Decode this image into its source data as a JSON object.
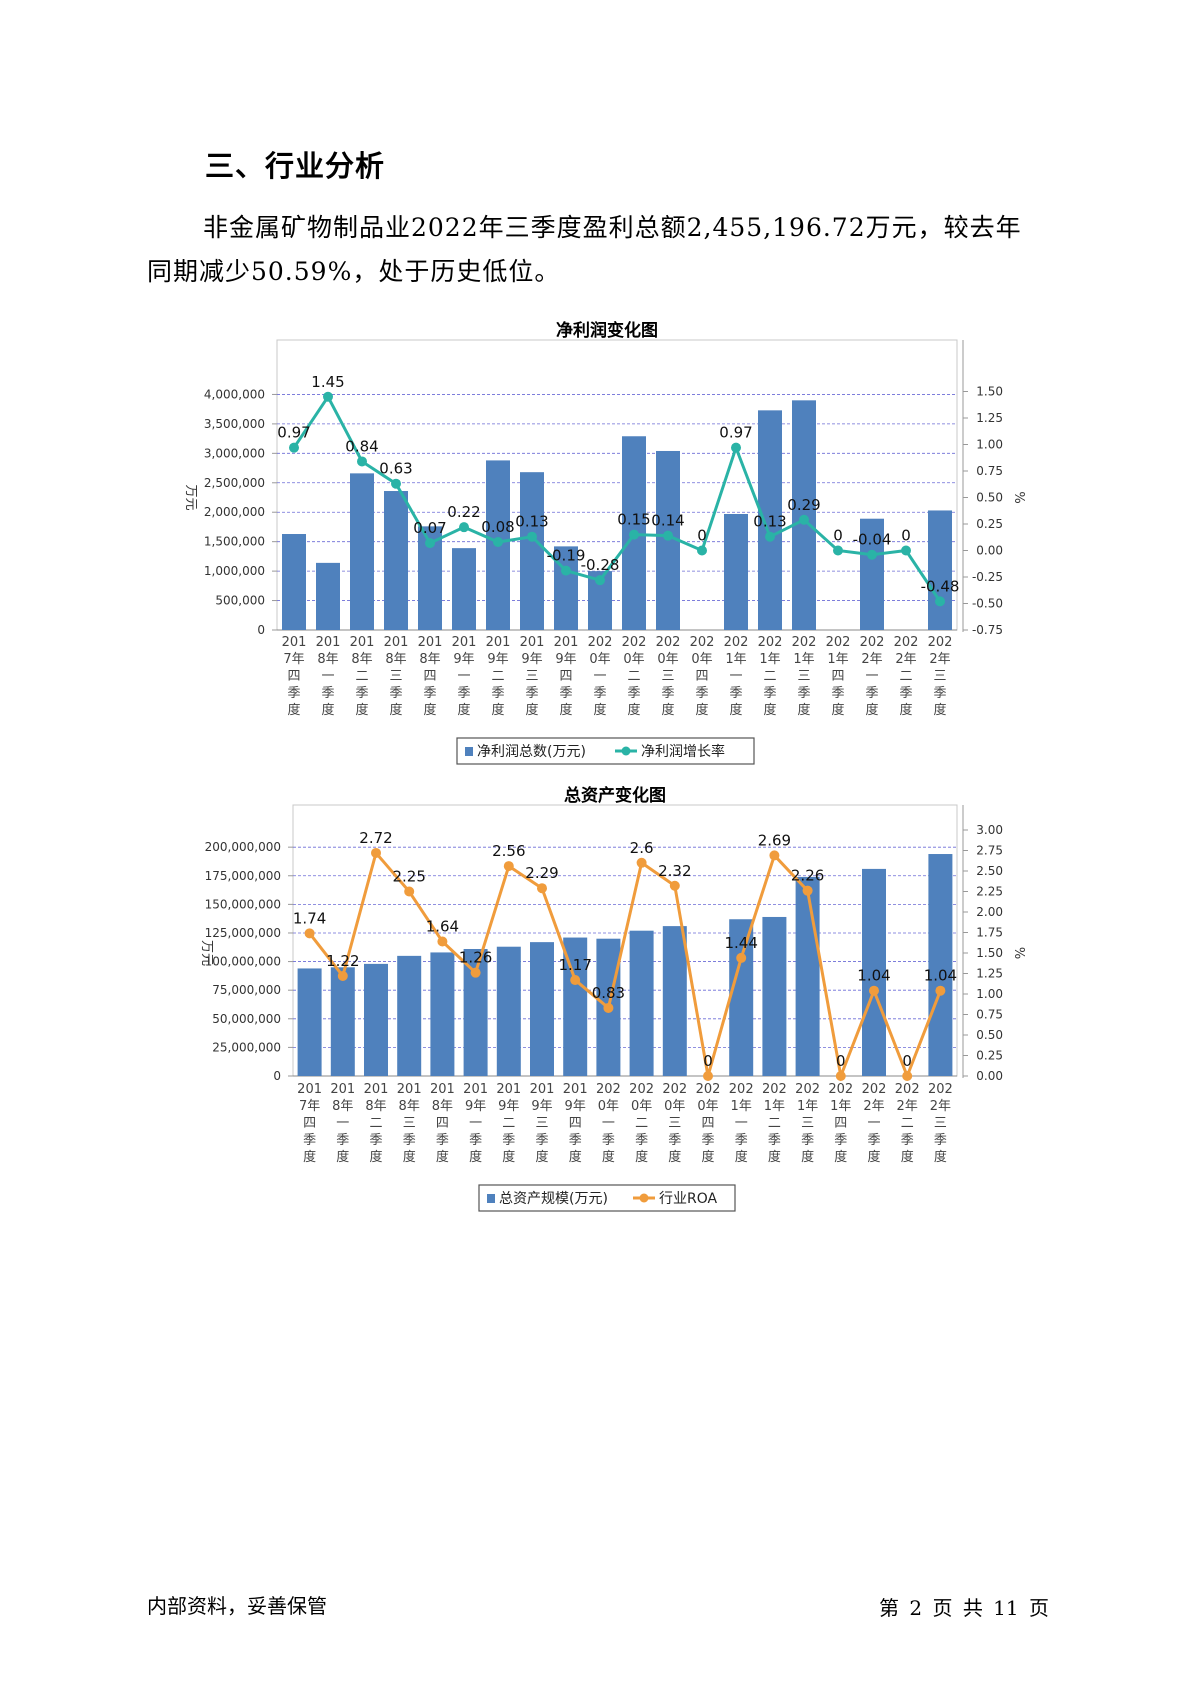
{
  "heading": "三、行业分析",
  "paragraph": "非金属矿物制品业2022年三季度盈利总额2,455,196.72万元，较去年同期减少50.59%，处于历史低位。",
  "footer": {
    "left": "内部资料，妥善保管",
    "right": "第 2 页  共 11 页"
  },
  "colors": {
    "bar": "#4f81bd",
    "line1": "#2ab3a6",
    "line2": "#f09c3c",
    "grid": "#6b6bd6"
  },
  "chart_data": [
    {
      "type": "bar+line",
      "title": "净利润变化图",
      "ylabel": "万元",
      "y2label": "%",
      "categories": [
        "2017年四季度",
        "2018年一季度",
        "2018年二季度",
        "2018年三季度",
        "2018年四季度",
        "2019年一季度",
        "2019年二季度",
        "2019年三季度",
        "2019年四季度",
        "2020年一季度",
        "2020年二季度",
        "2020年三季度",
        "2020年四季度",
        "2021年一季度",
        "2021年二季度",
        "2021年三季度",
        "2021年四季度",
        "2022年一季度",
        "2022年二季度",
        "2022年三季度"
      ],
      "ylim": [
        0,
        4500000
      ],
      "yticks": [
        0,
        500000,
        1000000,
        1500000,
        2000000,
        2500000,
        3000000,
        3500000,
        4000000
      ],
      "ytick_labels": [
        "0",
        "500,000",
        "1,000,000",
        "1,500,000",
        "2,000,000",
        "2,500,000",
        "3,000,000",
        "3,500,000",
        "4,000,000"
      ],
      "y2lim": [
        -0.75,
        1.75
      ],
      "y2ticks": [
        -0.75,
        -0.5,
        -0.25,
        0,
        0.25,
        0.5,
        0.75,
        1.0,
        1.25,
        1.5
      ],
      "y2tick_labels": [
        "-0.75",
        "-0.50",
        "-0.25",
        "0.00",
        "0.25",
        "0.50",
        "0.75",
        "1.00",
        "1.25",
        "1.50"
      ],
      "bar_series": {
        "name": "净利润总数(万元)",
        "values": [
          1630000,
          1140000,
          2660000,
          2360000,
          1760000,
          1390000,
          2880000,
          2680000,
          1420000,
          1000000,
          3290000,
          3040000,
          0,
          1970000,
          3730000,
          3900000,
          0,
          1890000,
          0,
          2030000
        ]
      },
      "line_series": {
        "name": "净利润增长率",
        "values": [
          0.97,
          1.45,
          0.84,
          0.63,
          0.07,
          0.22,
          0.08,
          0.13,
          -0.19,
          -0.28,
          0.15,
          0.14,
          0,
          0.97,
          0.13,
          0.29,
          0,
          -0.04,
          0,
          -0.48
        ],
        "labels": [
          "0.97",
          "1.45",
          "0.84",
          "0.63",
          "0.07",
          "0.22",
          "0.08",
          "0.13",
          "-0.19",
          "-0.28",
          "0.15",
          "0.14",
          "0",
          "0.97",
          "0.13",
          "0.29",
          "0",
          "-0.04",
          "0",
          "-0.48"
        ]
      }
    },
    {
      "type": "bar+line",
      "title": "总资产变化图",
      "ylabel": "万元",
      "y2label": "%",
      "categories": [
        "2017年四季度",
        "2018年一季度",
        "2018年二季度",
        "2018年三季度",
        "2018年四季度",
        "2019年一季度",
        "2019年二季度",
        "2019年三季度",
        "2019年四季度",
        "2020年一季度",
        "2020年二季度",
        "2020年三季度",
        "2020年四季度",
        "2021年一季度",
        "2021年二季度",
        "2021年三季度",
        "2021年四季度",
        "2022年一季度",
        "2022年二季度",
        "2022年三季度"
      ],
      "ylim": [
        0,
        215000000
      ],
      "yticks": [
        0,
        25000000,
        50000000,
        75000000,
        100000000,
        125000000,
        150000000,
        175000000,
        200000000
      ],
      "ytick_labels": [
        "0",
        "25,000,000",
        "50,000,000",
        "75,000,000",
        "100,000,000",
        "125,000,000",
        "150,000,000",
        "175,000,000",
        "200,000,000"
      ],
      "y2lim": [
        0,
        3.0
      ],
      "y2ticks": [
        0,
        0.25,
        0.5,
        0.75,
        1.0,
        1.25,
        1.5,
        1.75,
        2.0,
        2.25,
        2.5,
        2.75,
        3.0
      ],
      "y2tick_labels": [
        "0.00",
        "0.25",
        "0.50",
        "0.75",
        "1.00",
        "1.25",
        "1.50",
        "1.75",
        "2.00",
        "2.25",
        "2.50",
        "2.75",
        "3.00"
      ],
      "bar_series": {
        "name": "总资产规模(万元)",
        "values": [
          94000000,
          95000000,
          98000000,
          105000000,
          108000000,
          111000000,
          113000000,
          117000000,
          121000000,
          120000000,
          127000000,
          131000000,
          0,
          137000000,
          139000000,
          174000000,
          0,
          181000000,
          0,
          194000000
        ]
      },
      "line_series": {
        "name": "行业ROA",
        "values": [
          1.74,
          1.22,
          2.72,
          2.25,
          1.64,
          1.26,
          2.56,
          2.29,
          1.17,
          0.83,
          2.6,
          2.32,
          0,
          1.44,
          2.69,
          2.26,
          0,
          1.04,
          0,
          1.04
        ],
        "labels": [
          "1.74",
          "1.22",
          "2.72",
          "2.25",
          "1.64",
          "1.26",
          "2.56",
          "2.29",
          "1.17",
          "0.83",
          "2.6",
          "2.32",
          "0",
          "1.44",
          "2.69",
          "2.26",
          "0",
          "1.04",
          "0",
          "1.04"
        ]
      }
    }
  ]
}
